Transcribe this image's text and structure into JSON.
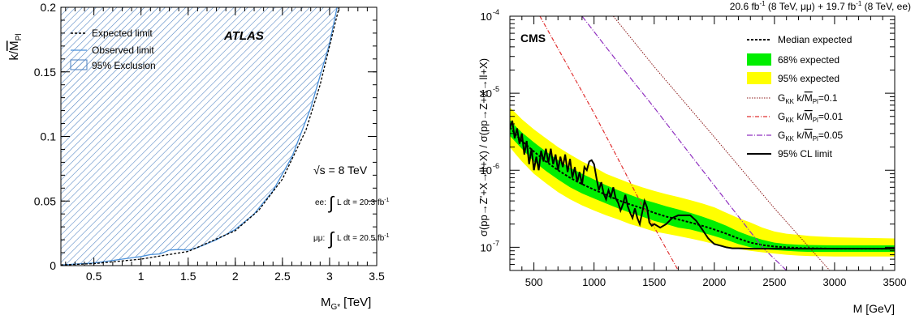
{
  "chart_data": [
    {
      "type": "area",
      "experiment": "ATLAS",
      "xlabel": "M",
      "xlabel_sub": "G*",
      "xlabel_unit": "[TeV]",
      "ylabel_pre": "k/",
      "ylabel_over": "M",
      "ylabel_sub": "Pl",
      "xlim": [
        0.15,
        3.5
      ],
      "ylim": [
        0,
        0.2
      ],
      "x_ticks": [
        0.5,
        1,
        1.5,
        2,
        2.5,
        3,
        3.5
      ],
      "x_tick_labels": [
        "0.5",
        "1",
        "1.5",
        "2",
        "2.5",
        "3",
        "3.5"
      ],
      "y_ticks": [
        0,
        0.05,
        0.1,
        0.15,
        0.2
      ],
      "y_tick_labels": [
        "0",
        "0.05",
        "0.1",
        "0.15",
        "0.2"
      ],
      "legend": {
        "placement": "top-left",
        "entries": [
          "Expected limit",
          "Observed limit",
          "95% Exclusion"
        ]
      },
      "energy_label": "√s = 8 TeV",
      "lumi_ee_prefix": "ee:",
      "lumi_ee_text": "L dt = 20.3 fb",
      "lumi_mm_prefix": "μμ:",
      "lumi_mm_text": "L dt = 20.5 fb",
      "lumi_sup": "-1",
      "colors": {
        "observed": "#4a90d9",
        "hatch": "#4a7fc0",
        "expected": "#000000"
      },
      "series": [
        {
          "name": "Expected limit",
          "x": [
            0.15,
            0.5,
            1.0,
            1.5,
            2.0,
            2.25,
            2.5,
            2.75,
            2.9,
            3.0,
            3.1
          ],
          "y": [
            0.0005,
            0.0015,
            0.005,
            0.011,
            0.027,
            0.043,
            0.067,
            0.105,
            0.14,
            0.17,
            0.2
          ]
        },
        {
          "name": "Observed limit",
          "x": [
            0.15,
            0.3,
            0.5,
            0.7,
            0.9,
            1.0,
            1.1,
            1.2,
            1.3,
            1.4,
            1.5,
            1.6,
            1.8,
            2.0,
            2.2,
            2.4,
            2.6,
            2.8,
            3.0,
            3.08
          ],
          "y": [
            0.0005,
            0.0012,
            0.002,
            0.004,
            0.006,
            0.007,
            0.0085,
            0.009,
            0.012,
            0.0125,
            0.012,
            0.014,
            0.02,
            0.028,
            0.04,
            0.058,
            0.084,
            0.122,
            0.172,
            0.2
          ]
        }
      ]
    },
    {
      "type": "line",
      "experiment": "CMS",
      "title_part1": "20.6 fb",
      "title_part2": " (8 TeV, μμ) + 19.7 fb",
      "title_part3": " (8 TeV, ee)",
      "title_sup": "-1",
      "xlabel": "M [GeV]",
      "ylabel": "σ(pp→Z'+X→ll+X) / σ(pp→Z+X→ll+X)",
      "xlim": [
        300,
        3500
      ],
      "ylim": [
        5e-08,
        0.0001
      ],
      "yscale": "log",
      "x_ticks": [
        500,
        1000,
        1500,
        2000,
        2500,
        3000,
        3500
      ],
      "x_tick_labels": [
        "500",
        "1000",
        "1500",
        "2000",
        "2500",
        "3000",
        "3500"
      ],
      "y_tick_labels": [
        {
          "base": "10",
          "exp": "-7"
        },
        {
          "base": "10",
          "exp": "-6"
        },
        {
          "base": "10",
          "exp": "-5"
        },
        {
          "base": "10",
          "exp": "-4"
        }
      ],
      "legend": {
        "placement": "top-right",
        "entries": [
          {
            "label": "Median expected"
          },
          {
            "label": "68% expected"
          },
          {
            "label": "95% expected"
          },
          {
            "label_pre": "G",
            "label_sub": "KK",
            "label_mid": " k/",
            "label_over": "M",
            "label_sub2": "Pl",
            "label_post": "=0.1"
          },
          {
            "label_pre": "G",
            "label_sub": "KK",
            "label_mid": " k/",
            "label_over": "M",
            "label_sub2": "Pl",
            "label_post": "=0.01"
          },
          {
            "label_pre": "G",
            "label_sub": "KK",
            "label_mid": " k/",
            "label_over": "M",
            "label_sub2": "Pl",
            "label_post": "=0.05"
          },
          {
            "label": "95% CL limit"
          }
        ]
      },
      "colors": {
        "band68": "#00ee00",
        "band95": "#ffff00",
        "g01": "#8b1a1a",
        "g001": "#e03030",
        "g005": "#9030c0"
      },
      "x": [
        300,
        350,
        400,
        500,
        600,
        700,
        800,
        900,
        1000,
        1100,
        1200,
        1300,
        1400,
        1500,
        1600,
        1700,
        1800,
        1900,
        2000,
        2100,
        2200,
        2300,
        2400,
        2500,
        2600,
        2700,
        2800,
        3000,
        3200,
        3500
      ],
      "series": [
        {
          "name": "95% expected",
          "low": [
            2e-06,
            1.6e-06,
            1.3e-06,
            9e-07,
            6.8e-07,
            5.2e-07,
            4.2e-07,
            3.5e-07,
            3e-07,
            2.6e-07,
            2.3e-07,
            2e-07,
            1.8e-07,
            1.6e-07,
            1.5e-07,
            1.4e-07,
            1.3e-07,
            1.2e-07,
            1.1e-07,
            1e-07,
            9.5e-08,
            9e-08,
            8.6e-08,
            8.3e-08,
            8e-08,
            7.8e-08,
            7.7e-08,
            7.6e-08,
            7.6e-08,
            7.6e-08
          ],
          "high": [
            6.5e-06,
            5.5e-06,
            4.6e-06,
            3.4e-06,
            2.6e-06,
            2e-06,
            1.6e-06,
            1.3e-06,
            1.1e-06,
            9e-07,
            7.8e-07,
            6.8e-07,
            6e-07,
            5.4e-07,
            4.9e-07,
            4.5e-07,
            4.1e-07,
            3.7e-07,
            3.3e-07,
            2.8e-07,
            2.4e-07,
            2.1e-07,
            1.8e-07,
            1.6e-07,
            1.5e-07,
            1.45e-07,
            1.4e-07,
            1.35e-07,
            1.33e-07,
            1.3e-07
          ]
        },
        {
          "name": "68% expected",
          "low": [
            2.8e-06,
            2.3e-06,
            1.9e-06,
            1.3e-06,
            9.8e-07,
            7.6e-07,
            6e-07,
            5e-07,
            4.3e-07,
            3.7e-07,
            3.2e-07,
            2.8e-07,
            2.5e-07,
            2.2e-07,
            2e-07,
            1.8e-07,
            1.7e-07,
            1.55e-07,
            1.4e-07,
            1.25e-07,
            1.1e-07,
            1e-07,
            9.5e-08,
            9.2e-08,
            9e-08,
            8.8e-08,
            8.7e-08,
            8.7e-08,
            8.7e-08,
            8.7e-08
          ],
          "high": [
            4.5e-06,
            3.7e-06,
            3.1e-06,
            2.3e-06,
            1.75e-06,
            1.35e-06,
            1.08e-06,
            9e-07,
            7.6e-07,
            6.4e-07,
            5.5e-07,
            4.8e-07,
            4.2e-07,
            3.8e-07,
            3.4e-07,
            3.1e-07,
            2.8e-07,
            2.5e-07,
            2.2e-07,
            1.9e-07,
            1.6e-07,
            1.4e-07,
            1.25e-07,
            1.15e-07,
            1.1e-07,
            1.08e-07,
            1.07e-07,
            1.06e-07,
            1.06e-07,
            1.06e-07
          ]
        },
        {
          "name": "Median expected",
          "values": [
            3.6e-06,
            2.9e-06,
            2.4e-06,
            1.75e-06,
            1.3e-06,
            1e-06,
            8e-07,
            6.6e-07,
            5.6e-07,
            4.8e-07,
            4.1e-07,
            3.6e-07,
            3.2e-07,
            2.8e-07,
            2.5e-07,
            2.3e-07,
            2.1e-07,
            1.9e-07,
            1.7e-07,
            1.5e-07,
            1.3e-07,
            1.15e-07,
            1.07e-07,
            1.02e-07,
            1e-07,
            9.8e-08,
            9.7e-08,
            9.6e-08,
            9.6e-08,
            9.6e-08
          ]
        },
        {
          "name": "95% CL limit",
          "x": [
            300,
            320,
            340,
            360,
            380,
            400,
            420,
            440,
            460,
            480,
            500,
            520,
            540,
            560,
            580,
            600,
            620,
            640,
            660,
            680,
            700,
            720,
            740,
            760,
            780,
            800,
            820,
            840,
            860,
            880,
            900,
            920,
            940,
            960,
            980,
            1000,
            1020,
            1040,
            1060,
            1080,
            1100,
            1120,
            1140,
            1160,
            1180,
            1200,
            1220,
            1240,
            1260,
            1280,
            1300,
            1320,
            1340,
            1360,
            1380,
            1400,
            1420,
            1440,
            1460,
            1480,
            1500,
            1550,
            1600,
            1650,
            1700,
            1750,
            1800,
            1850,
            1900,
            1950,
            2000,
            2050,
            2100,
            2150,
            2200,
            2300,
            2400,
            2500,
            2600,
            2700,
            2800,
            2900,
            3000,
            3100,
            3200,
            3300,
            3400,
            3500
          ],
          "y": [
            3.5e-06,
            4.4e-06,
            2.6e-06,
            3.5e-06,
            2.2e-06,
            3e-06,
            1.6e-06,
            2.4e-06,
            1.2e-06,
            1.9e-06,
            1e-06,
            1.5e-06,
            1e-06,
            1.8e-06,
            1.3e-06,
            1.9e-06,
            1.25e-06,
            1.9e-06,
            1.2e-06,
            1.6e-06,
            1e-06,
            1.5e-06,
            1.1e-06,
            1.6e-06,
            9.5e-07,
            1.4e-06,
            8e-07,
            1.1e-06,
            7e-07,
            9.5e-07,
            6.5e-07,
            1.1e-06,
            1e-06,
            1.3e-06,
            1.35e-06,
            1.2e-06,
            8e-07,
            5.5e-07,
            7e-07,
            5e-07,
            4.2e-07,
            5.5e-07,
            4.5e-07,
            6e-07,
            4.3e-07,
            3.8e-07,
            3e-07,
            3.6e-07,
            4.8e-07,
            3.4e-07,
            2.8e-07,
            2.4e-07,
            3.2e-07,
            2.4e-07,
            2e-07,
            2.8e-07,
            4e-07,
            3.3e-07,
            2.1e-07,
            1.9e-07,
            2e-07,
            1.8e-07,
            2e-07,
            2.4e-07,
            2.6e-07,
            2.6e-07,
            2.6e-07,
            2.2e-07,
            1.7e-07,
            1.3e-07,
            1.1e-07,
            1.05e-07,
            1e-07,
            9.7e-08,
            9.7e-08,
            9.6e-08,
            9.6e-08,
            9.6e-08,
            9.6e-08,
            9.6e-08,
            9.6e-08,
            9.6e-08,
            9.6e-08,
            9.6e-08,
            9.6e-08,
            9.6e-08,
            9.6e-08,
            9.6e-08
          ]
        },
        {
          "name": "G_KK k/M_Pl=0.1",
          "x": [
            1160,
            1500,
            2000,
            2500,
            2960
          ],
          "y": [
            0.0001,
            2.2e-05,
            2.7e-06,
            3.2e-07,
            5e-08
          ]
        },
        {
          "name": "G_KK k/M_Pl=0.01",
          "x": [
            550,
            800,
            1000,
            1200,
            1400,
            1700
          ],
          "y": [
            0.0001,
            2e-05,
            5.5e-06,
            1.4e-06,
            3.5e-07,
            5e-08
          ]
        },
        {
          "name": "G_KK k/M_Pl=0.05",
          "x": [
            900,
            1200,
            1500,
            1800,
            2100,
            2400,
            2600
          ],
          "y": [
            0.0001,
            2.5e-05,
            6.5e-06,
            1.6e-06,
            4e-07,
            1e-07,
            5e-08
          ]
        }
      ]
    }
  ]
}
